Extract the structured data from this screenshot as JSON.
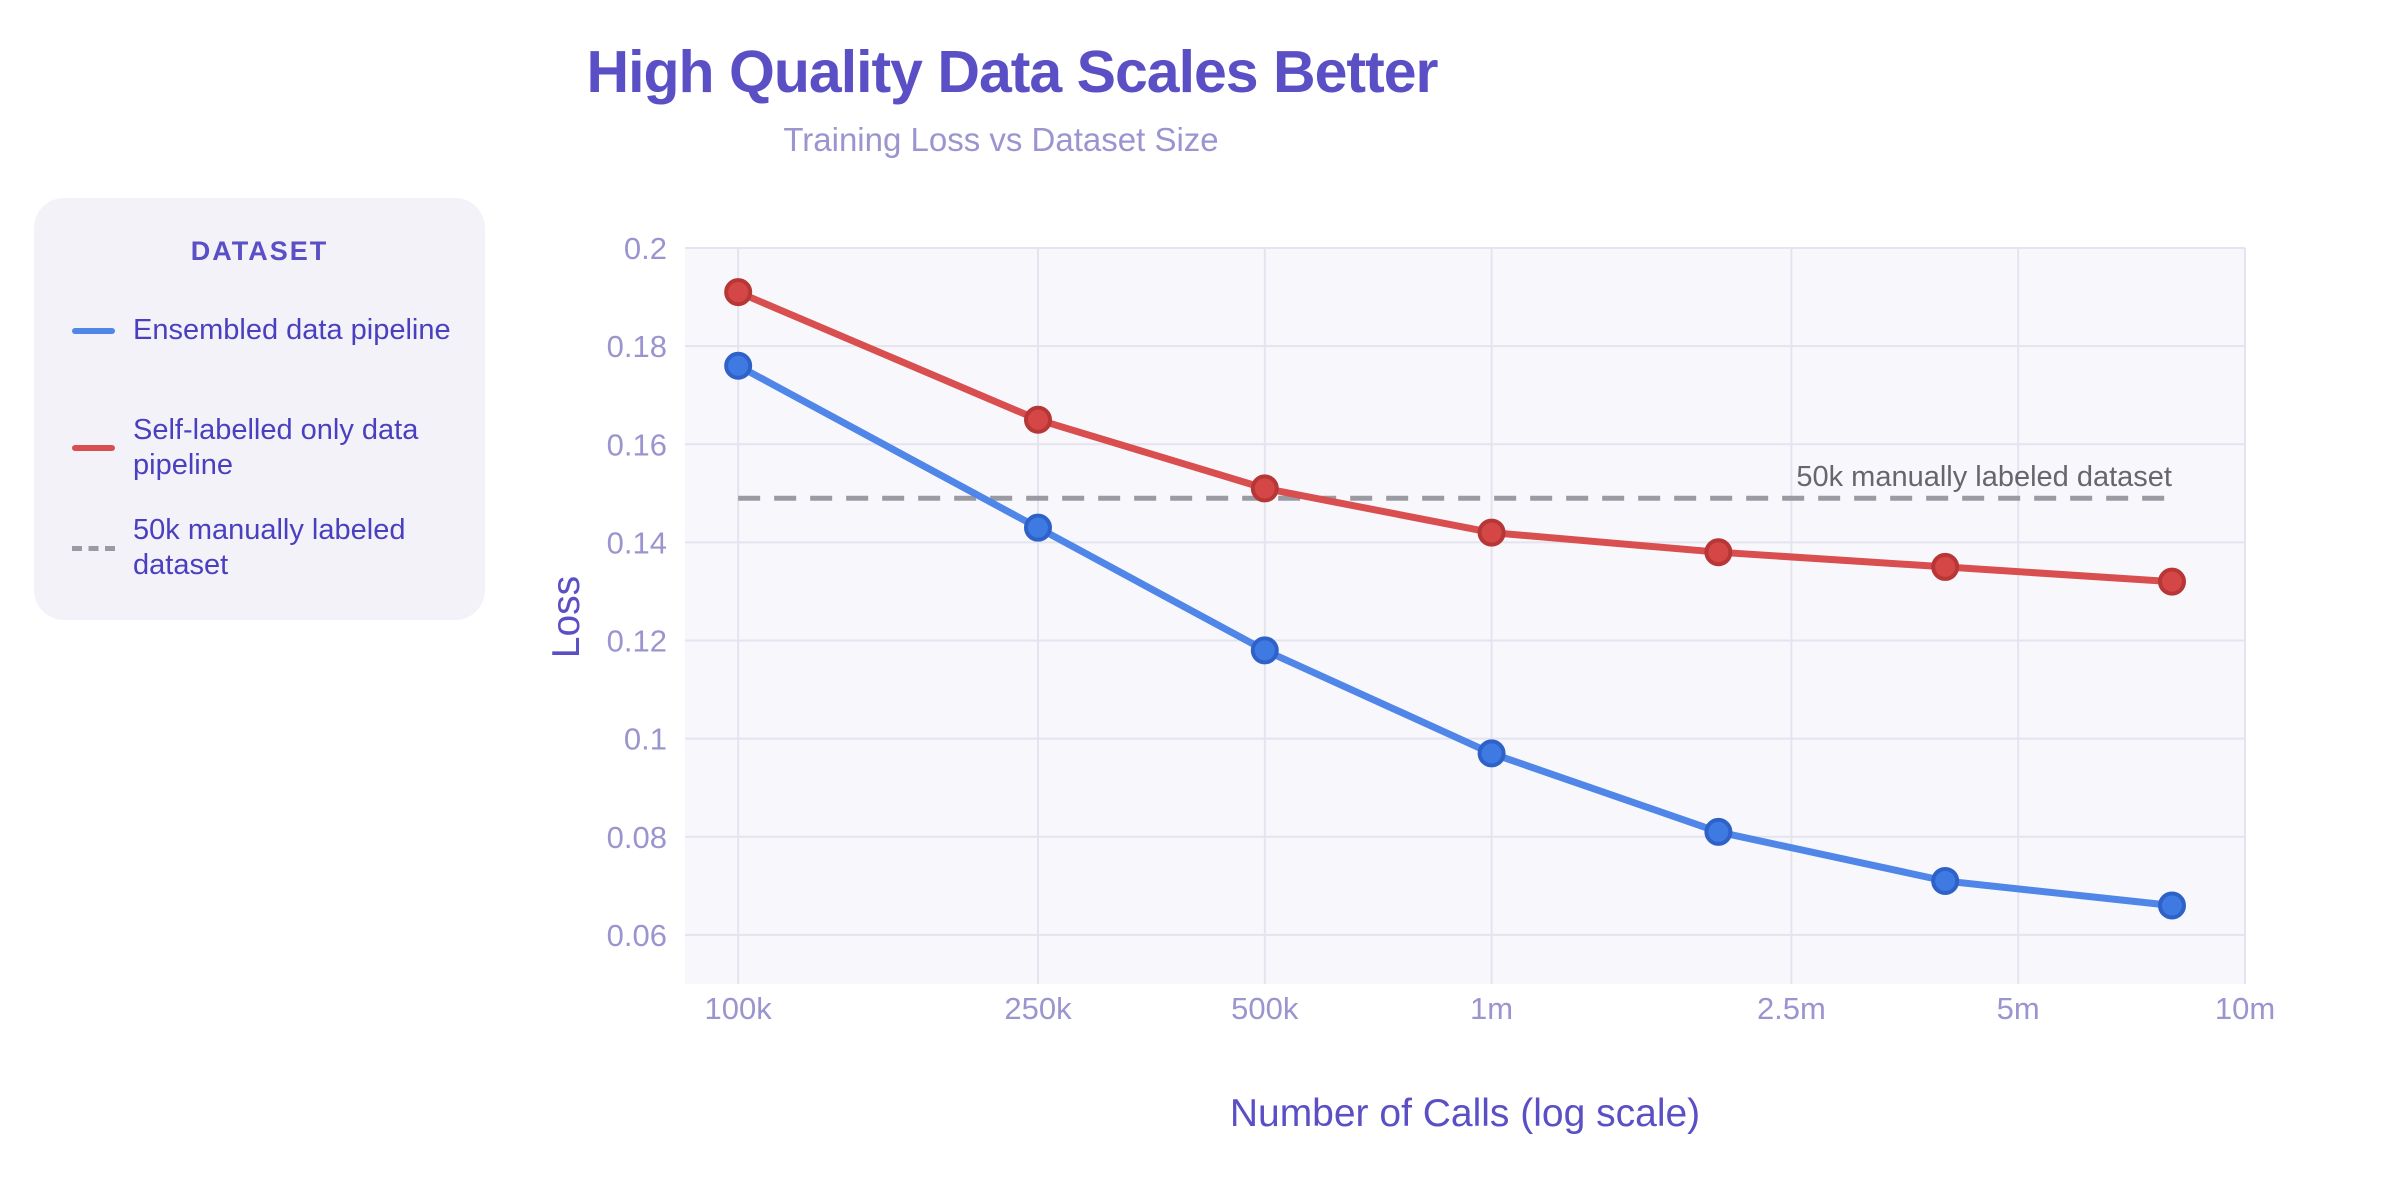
{
  "chart_data": {
    "type": "line",
    "title": "High Quality Data Scales Better",
    "subtitle": "Training Loss vs Dataset Size",
    "xlabel": "Number of Calls (log scale)",
    "ylabel": "Loss",
    "x_scale": "log",
    "xlim": [
      85000,
      10000000
    ],
    "ylim": [
      0.05,
      0.2
    ],
    "x_ticks": [
      {
        "value": 100000,
        "label": "100k"
      },
      {
        "value": 250000,
        "label": "250k"
      },
      {
        "value": 500000,
        "label": "500k"
      },
      {
        "value": 1000000,
        "label": "1m"
      },
      {
        "value": 2500000,
        "label": "2.5m"
      },
      {
        "value": 5000000,
        "label": "5m"
      },
      {
        "value": 10000000,
        "label": "10m"
      }
    ],
    "y_ticks": [
      {
        "value": 0.06,
        "label": "0.06"
      },
      {
        "value": 0.08,
        "label": "0.08"
      },
      {
        "value": 0.1,
        "label": "0.1"
      },
      {
        "value": 0.12,
        "label": "0.12"
      },
      {
        "value": 0.14,
        "label": "0.14"
      },
      {
        "value": 0.16,
        "label": "0.16"
      },
      {
        "value": 0.18,
        "label": "0.18"
      },
      {
        "value": 0.2,
        "label": "0.2"
      }
    ],
    "x": [
      100000,
      250000,
      500000,
      1000000,
      2000000,
      4000000,
      8000000
    ],
    "series": [
      {
        "name": "Ensembled data pipeline",
        "color": "#4f86e8",
        "values": [
          0.176,
          0.143,
          0.118,
          0.097,
          0.081,
          0.071,
          0.066
        ]
      },
      {
        "name": "Self-labelled only data pipeline",
        "color": "#d94f4f",
        "values": [
          0.191,
          0.165,
          0.151,
          0.142,
          0.138,
          0.135,
          0.132
        ]
      }
    ],
    "reference_line": {
      "name": "50k manually labeled dataset",
      "label": "50k manually labeled dataset",
      "value": 0.149,
      "x_start": 100000,
      "x_end": 8000000,
      "color": "#9a9aa2"
    },
    "grid": true,
    "legend": {
      "title": "DATASET",
      "position": "left"
    }
  }
}
